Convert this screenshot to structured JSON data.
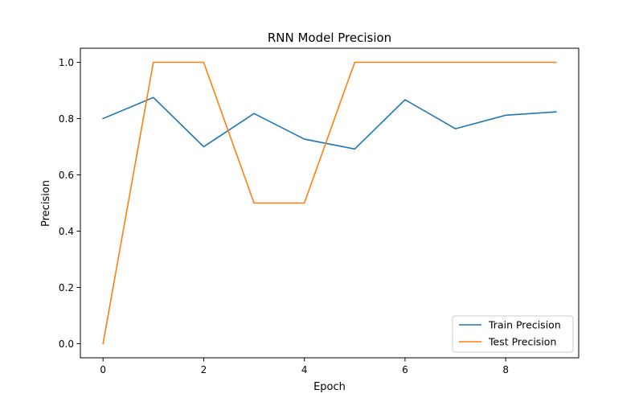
{
  "chart_data": {
    "type": "line",
    "title": "RNN Model Precision",
    "xlabel": "Epoch",
    "ylabel": "Precision",
    "x": [
      0,
      1,
      2,
      3,
      4,
      5,
      6,
      7,
      8,
      9
    ],
    "series": [
      {
        "name": "Train Precision",
        "color": "#1f77b4",
        "values": [
          0.8,
          0.875,
          0.7,
          0.818,
          0.727,
          0.692,
          0.867,
          0.764,
          0.812,
          0.824
        ]
      },
      {
        "name": "Test Precision",
        "color": "#ff7f0e",
        "values": [
          0.0,
          1.0,
          1.0,
          0.5,
          0.5,
          1.0,
          1.0,
          1.0,
          1.0,
          1.0
        ]
      }
    ],
    "xlim": [
      -0.45,
      9.45
    ],
    "ylim": [
      -0.05,
      1.05
    ],
    "xticks": [
      "0",
      "2",
      "4",
      "6",
      "8"
    ],
    "xtick_values": [
      0,
      2,
      4,
      6,
      8
    ],
    "yticks": [
      "0.0",
      "0.2",
      "0.4",
      "0.6",
      "0.8",
      "1.0"
    ],
    "ytick_values": [
      0.0,
      0.2,
      0.4,
      0.6,
      0.8,
      1.0
    ],
    "grid": false,
    "legend_position": "lower-right"
  }
}
